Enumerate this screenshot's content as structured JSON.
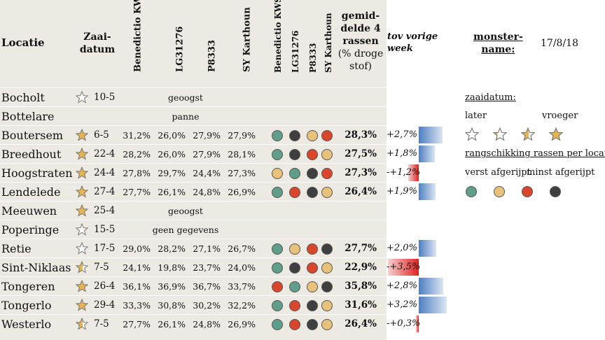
{
  "header": {
    "locatie": "Locatie",
    "zaai": "Zaai-",
    "datum": "datum",
    "v1": "Benedictio KWS",
    "v2": "LG31276",
    "v3": "P8333",
    "v4": "SY Karthoun",
    "r1": "Benedictio KWS",
    "r2": "LG31276",
    "r3": "P8333",
    "r4": "SY Karthoun",
    "avg1": "gemid-",
    "avg2": "delde 4",
    "avg3": "rassen",
    "avg4": "(% droge",
    "avg5": "stof)",
    "tov1": "tov vorige",
    "tov2": "week",
    "monster1": "monster-",
    "monster2": "name:",
    "date": "17/8/18"
  },
  "colors": {
    "green": "#5f9e8a",
    "yellow": "#e8c27a",
    "red": "#d9462c",
    "black": "#3f3f3f",
    "star": "#e8b451",
    "bar": "#4f7fc0",
    "negbar": "#e02020"
  },
  "rows": [
    {
      "loc": "Bocholt",
      "star": "empty",
      "date": "10-5",
      "note": "geoogst"
    },
    {
      "loc": "Bottelare",
      "star": "none",
      "date": "",
      "note": "panne"
    },
    {
      "loc": "Boutersem",
      "star": "full",
      "date": "6-5",
      "p": [
        "31,2%",
        "26,0%",
        "27,9%",
        "27,9%"
      ],
      "dots": [
        "green",
        "black",
        "yellow",
        "red"
      ],
      "avg": "28,3%",
      "chg": "+2,7%",
      "chgv": 2.7
    },
    {
      "loc": "Breedhout",
      "star": "full",
      "date": "22-4",
      "p": [
        "28,2%",
        "26,0%",
        "27,9%",
        "28,1%"
      ],
      "dots": [
        "green",
        "black",
        "red",
        "yellow"
      ],
      "avg": "27,5%",
      "chg": "+1,8%",
      "chgv": 1.8
    },
    {
      "loc": "Hoogstraten",
      "star": "full",
      "date": "24-4",
      "p": [
        "27,8%",
        "29,7%",
        "24,4%",
        "27,3%"
      ],
      "dots": [
        "yellow",
        "green",
        "black",
        "red"
      ],
      "avg": "27,3%",
      "chg": "-+1,2%",
      "chgv": -1.2
    },
    {
      "loc": "Lendelede",
      "star": "full",
      "date": "27-4",
      "p": [
        "27,7%",
        "26,1%",
        "24,8%",
        "26,9%"
      ],
      "dots": [
        "green",
        "red",
        "black",
        "yellow"
      ],
      "avg": "26,4%",
      "chg": "+1,9%",
      "chgv": 1.9
    },
    {
      "loc": "Meeuwen",
      "star": "full",
      "date": "25-4",
      "note": "geoogst"
    },
    {
      "loc": "Poperinge",
      "star": "empty",
      "date": "15-5",
      "note": "geen gegevens"
    },
    {
      "loc": "Retie",
      "star": "empty",
      "date": "17-5",
      "p": [
        "29,0%",
        "28,2%",
        "27,1%",
        "26,7%"
      ],
      "dots": [
        "green",
        "yellow",
        "red",
        "black"
      ],
      "avg": "27,7%",
      "chg": "+2,0%",
      "chgv": 2.0
    },
    {
      "loc": "Sint-Niklaas",
      "star": "half",
      "date": "7-5",
      "p": [
        "24,1%",
        "19,8%",
        "23,7%",
        "24,0%"
      ],
      "dots": [
        "green",
        "black",
        "red",
        "yellow"
      ],
      "avg": "22,9%",
      "chg": "-+3,5%",
      "chgv": -3.5
    },
    {
      "loc": "Tongeren",
      "star": "full",
      "date": "26-4",
      "p": [
        "36,1%",
        "36,9%",
        "36,7%",
        "33,7%"
      ],
      "dots": [
        "red",
        "green",
        "yellow",
        "black"
      ],
      "avg": "35,8%",
      "chg": "+2,8%",
      "chgv": 2.8
    },
    {
      "loc": "Tongerlo",
      "star": "full",
      "date": "29-4",
      "p": [
        "33,3%",
        "30,8%",
        "30,2%",
        "32,2%"
      ],
      "dots": [
        "green",
        "red",
        "black",
        "yellow"
      ],
      "avg": "31,6%",
      "chg": "+3,2%",
      "chgv": 3.2
    },
    {
      "loc": "Westerlo",
      "star": "half",
      "date": "7-5",
      "p": [
        "27,7%",
        "26,1%",
        "24,8%",
        "26,9%"
      ],
      "dots": [
        "green",
        "red",
        "black",
        "yellow"
      ],
      "avg": "26,4%",
      "chg": "-+0,3%",
      "chgv": -0.3
    }
  ],
  "legend": {
    "zaai": "zaaidatum:",
    "later": "later",
    "vroeger": "vroeger",
    "rang": "rangschikking rassen per locatie:",
    "verst": "verst afgerijpt",
    "minst": "minst afgerijpt"
  }
}
